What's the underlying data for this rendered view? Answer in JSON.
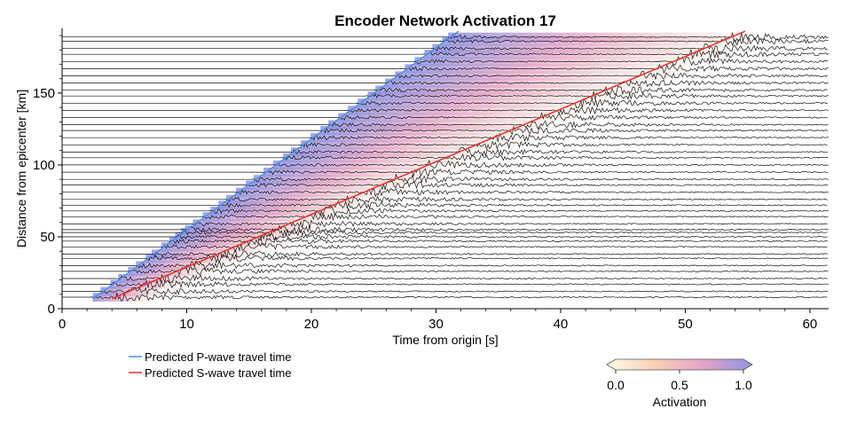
{
  "chart_data": {
    "type": "line",
    "title": "Encoder Network Activation 17",
    "xlabel": "Time from origin [s]",
    "ylabel": "Distance from epicenter [km]",
    "xlim": [
      0,
      61.5
    ],
    "ylim": [
      0,
      195
    ],
    "x_ticks": [
      0,
      10,
      20,
      30,
      40,
      50,
      60
    ],
    "y_ticks": [
      0,
      50,
      100,
      150
    ],
    "grid": false,
    "series": [
      {
        "name": "Predicted P-wave travel time",
        "color": "#4a90e2",
        "x": [
          2.5,
          31.8
        ],
        "y": [
          7,
          193
        ]
      },
      {
        "name": "Predicted S-wave travel time",
        "color": "#e8302a",
        "x": [
          4.0,
          54.8
        ],
        "y": [
          7,
          193
        ]
      }
    ],
    "trace_distances_km": [
      8,
      12,
      17,
      21,
      26,
      30,
      35,
      38,
      43,
      47,
      50,
      53,
      55,
      59,
      64,
      68,
      72,
      76,
      81,
      86,
      90,
      95,
      100,
      105,
      109,
      114,
      119,
      124,
      128,
      133,
      138,
      143,
      148,
      152,
      157,
      162,
      167,
      172,
      177,
      181,
      186,
      189
    ],
    "colorbar": {
      "label": "Activation",
      "ticks": [
        "0.0",
        "0.5",
        "1.0"
      ],
      "min": 0,
      "max": 1,
      "colors": [
        "#fdfbea",
        "#f8cfb4",
        "#e4a3c8",
        "#8d93e0"
      ]
    },
    "legend": {
      "position": "bottom-left"
    }
  }
}
